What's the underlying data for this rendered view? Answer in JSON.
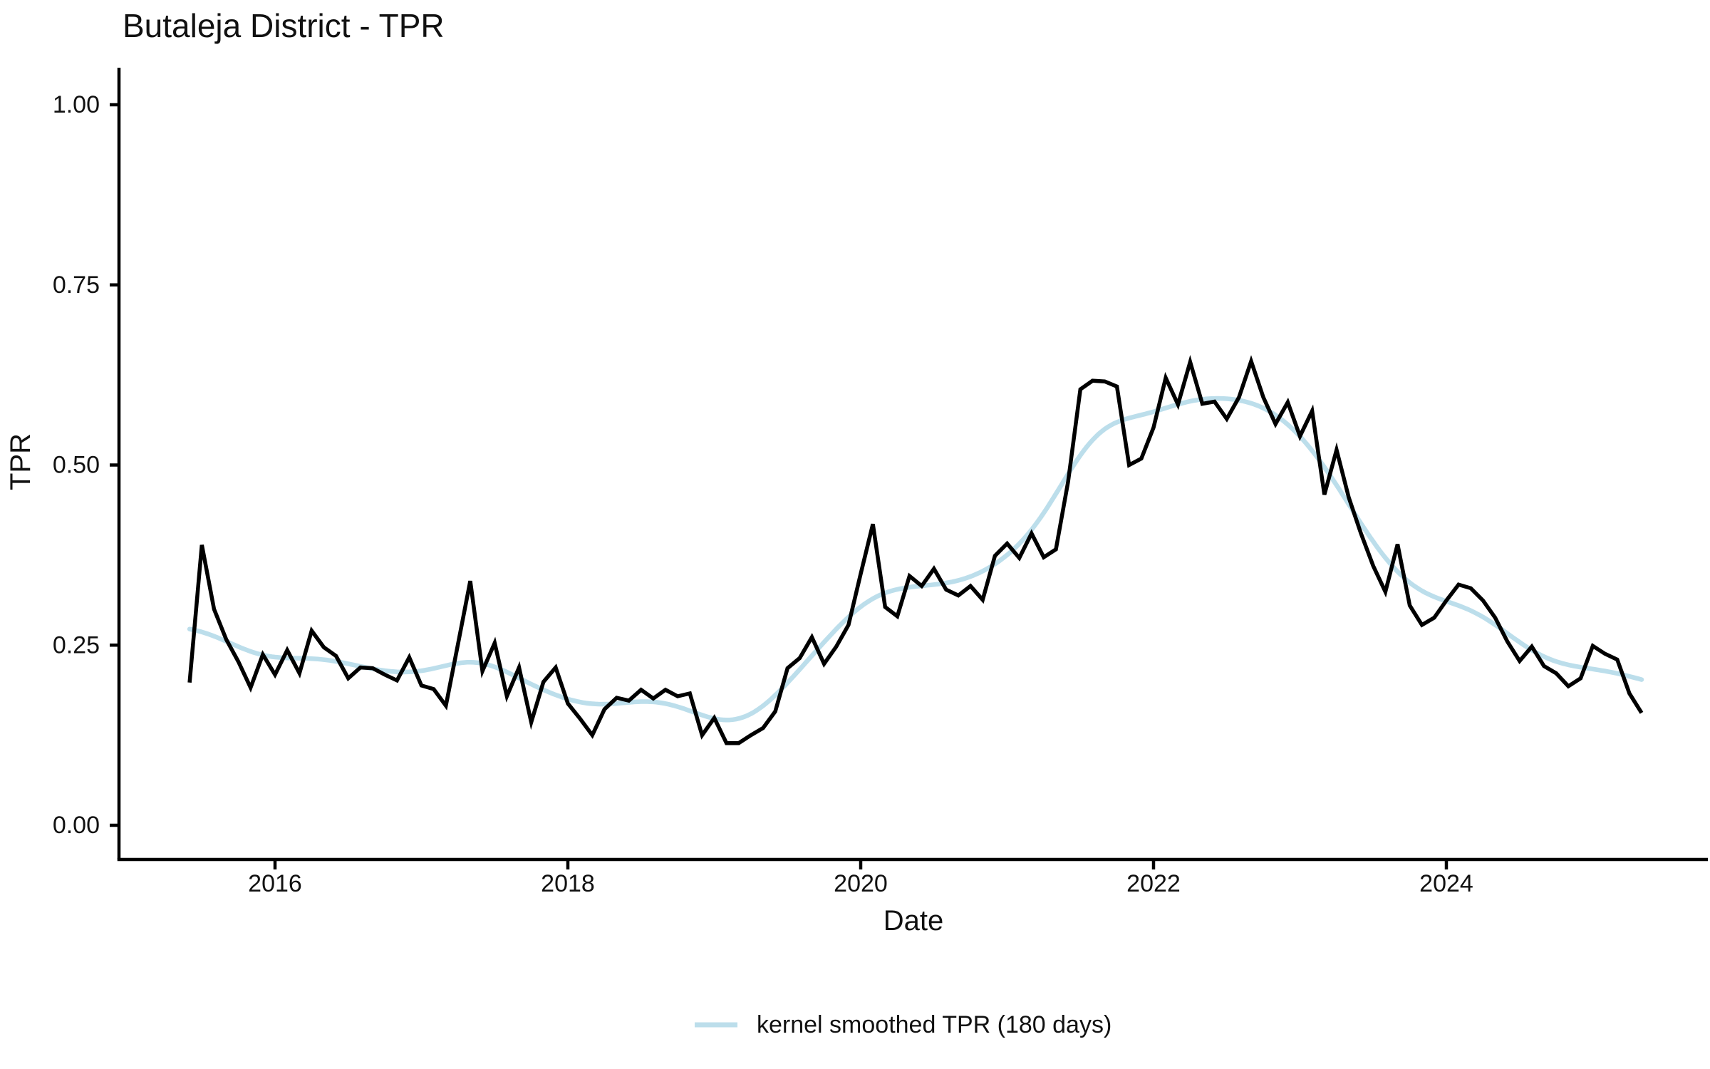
{
  "chart": {
    "title": "Butaleja District - TPR",
    "xlabel": "Date",
    "ylabel": "TPR"
  },
  "legend": {
    "label": "kernel smoothed TPR (180 days)"
  },
  "colors": {
    "raw_line": "#000000",
    "smoothed_line": "#BCDEEB",
    "axis": "#000000",
    "text": "#111111",
    "background": "#ffffff"
  },
  "chart_data": {
    "type": "line",
    "title": "Butaleja District - TPR",
    "xlabel": "Date",
    "ylabel": "TPR",
    "ylim": [
      0,
      1
    ],
    "grid": false,
    "legend_position": "bottom",
    "x_start_month": "2015-05",
    "x_end_month": "2025-04",
    "frequency": "monthly",
    "x_tick_years": [
      2016,
      2018,
      2020,
      2022,
      2024
    ],
    "x_tick_labels": [
      "2016",
      "2018",
      "2020",
      "2022",
      "2024"
    ],
    "y_tick_values": [
      0,
      0.25,
      0.5,
      0.75,
      1
    ],
    "y_tick_labels": [
      "0.00",
      "0.25",
      "0.50",
      "0.75",
      "1.00"
    ],
    "series": [
      {
        "name": "TPR",
        "style": "raw monthly line",
        "color": "#000000",
        "values": [
          0.198,
          0.389,
          0.3,
          0.258,
          0.227,
          0.191,
          0.237,
          0.209,
          0.243,
          0.211,
          0.27,
          0.247,
          0.235,
          0.204,
          0.219,
          0.218,
          0.209,
          0.201,
          0.233,
          0.194,
          0.189,
          0.166,
          0.252,
          0.339,
          0.214,
          0.253,
          0.179,
          0.219,
          0.143,
          0.199,
          0.219,
          0.169,
          0.148,
          0.125,
          0.161,
          0.177,
          0.173,
          0.188,
          0.176,
          0.188,
          0.179,
          0.183,
          0.125,
          0.149,
          0.114,
          0.114,
          0.125,
          0.135,
          0.158,
          0.218,
          0.232,
          0.261,
          0.224,
          0.248,
          0.278,
          0.349,
          0.418,
          0.303,
          0.29,
          0.346,
          0.332,
          0.356,
          0.327,
          0.319,
          0.332,
          0.313,
          0.374,
          0.391,
          0.371,
          0.405,
          0.372,
          0.383,
          0.477,
          0.605,
          0.617,
          0.616,
          0.609,
          0.5,
          0.509,
          0.552,
          0.621,
          0.584,
          0.643,
          0.585,
          0.588,
          0.564,
          0.594,
          0.644,
          0.594,
          0.557,
          0.587,
          0.54,
          0.575,
          0.459,
          0.521,
          0.455,
          0.405,
          0.36,
          0.324,
          0.39,
          0.305,
          0.278,
          0.288,
          0.312,
          0.334,
          0.329,
          0.312,
          0.288,
          0.255,
          0.228,
          0.248,
          0.221,
          0.211,
          0.193,
          0.204,
          0.249,
          0.238,
          0.23,
          0.183,
          0.156
        ]
      },
      {
        "name": "kernel smoothed TPR (180 days)",
        "style": "kernel smoothed",
        "color": "#BCDEEB",
        "derived_from": "TPR",
        "kernel": "gaussian",
        "bandwidth_days": 180
      }
    ]
  }
}
